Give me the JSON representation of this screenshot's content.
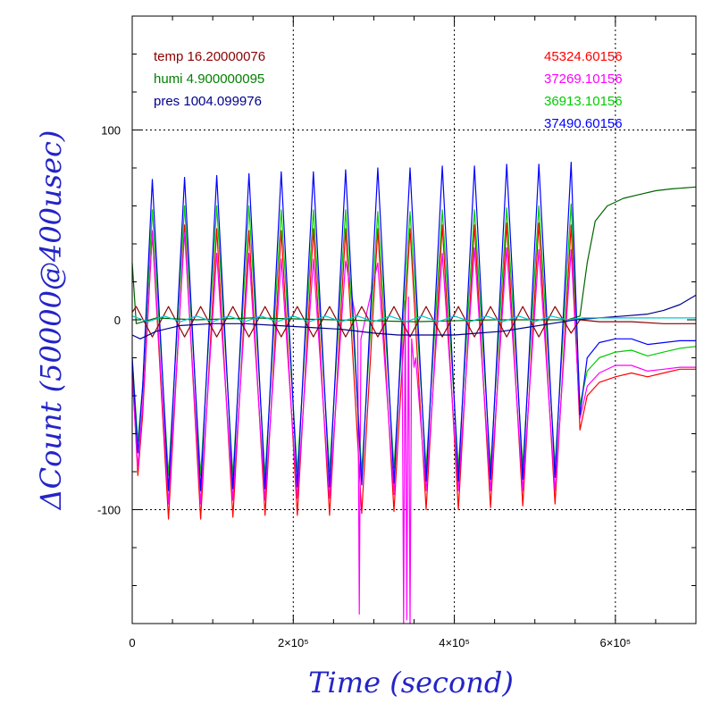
{
  "chart_data": {
    "type": "line",
    "xlabel": "Time (second)",
    "ylabel": "ΔCount (50000@400usec)",
    "xlim": [
      0,
      700000
    ],
    "ylim": [
      -160,
      160
    ],
    "x_ticks": [
      {
        "value": 0,
        "label": "0"
      },
      {
        "value": 200000,
        "label": "2×10⁵"
      },
      {
        "value": 400000,
        "label": "4×10⁵"
      },
      {
        "value": 600000,
        "label": "6×10⁵"
      }
    ],
    "y_ticks": [
      {
        "value": -100,
        "label": "-100"
      },
      {
        "value": 0,
        "label": "0"
      },
      {
        "value": 100,
        "label": "100"
      }
    ],
    "grid": "dotted",
    "env_legend": [
      {
        "label": "temp",
        "value": "16.20000076",
        "color": "#8b0000"
      },
      {
        "label": "humi",
        "value": "4.900000095",
        "color": "#008000"
      },
      {
        "label": "pres",
        "value": "1004.099976",
        "color": "#00008b"
      }
    ],
    "count_legend": [
      {
        "value": "45324.60156",
        "color": "#ff0000"
      },
      {
        "value": "37269.10156",
        "color": "#ff00ff"
      },
      {
        "value": "36913.10156",
        "color": "#00cc00"
      },
      {
        "value": "37490.60156",
        "color": "#0000ff"
      }
    ],
    "series": [
      {
        "key": "red",
        "color": "#ff0000",
        "points": [
          [
            0,
            -25
          ],
          [
            7000,
            -82
          ],
          [
            13000,
            -50
          ],
          [
            25000,
            46
          ],
          [
            45000,
            -105
          ],
          [
            65000,
            50
          ],
          [
            85000,
            -105
          ],
          [
            105000,
            48
          ],
          [
            125000,
            -104
          ],
          [
            145000,
            47
          ],
          [
            165000,
            -103
          ],
          [
            185000,
            47
          ],
          [
            205000,
            -103
          ],
          [
            225000,
            48
          ],
          [
            245000,
            -103
          ],
          [
            265000,
            48
          ],
          [
            285000,
            -102
          ],
          [
            305000,
            48
          ],
          [
            325000,
            -101
          ],
          [
            345000,
            48
          ],
          [
            365000,
            -100
          ],
          [
            385000,
            50
          ],
          [
            405000,
            -100
          ],
          [
            425000,
            50
          ],
          [
            445000,
            -99
          ],
          [
            465000,
            51
          ],
          [
            485000,
            -98
          ],
          [
            505000,
            51
          ],
          [
            525000,
            -97
          ],
          [
            545000,
            50
          ],
          [
            556000,
            -58
          ],
          [
            565000,
            -40
          ],
          [
            580000,
            -33
          ],
          [
            600000,
            -30
          ],
          [
            620000,
            -28
          ],
          [
            640000,
            -30
          ],
          [
            660000,
            -28
          ],
          [
            680000,
            -26
          ],
          [
            700000,
            -26
          ]
        ]
      },
      {
        "key": "magenta",
        "color": "#ff00ff",
        "points": [
          [
            0,
            -30
          ],
          [
            7000,
            -78
          ],
          [
            13000,
            -45
          ],
          [
            25000,
            47
          ],
          [
            45000,
            -97
          ],
          [
            65000,
            46
          ],
          [
            85000,
            -97
          ],
          [
            105000,
            35
          ],
          [
            125000,
            -95
          ],
          [
            145000,
            35
          ],
          [
            165000,
            -95
          ],
          [
            185000,
            32
          ],
          [
            205000,
            -94
          ],
          [
            225000,
            32
          ],
          [
            245000,
            -94
          ],
          [
            265000,
            31
          ],
          [
            280000,
            -5
          ],
          [
            282000,
            -155
          ],
          [
            284000,
            -10
          ],
          [
            305000,
            30
          ],
          [
            325000,
            -92
          ],
          [
            335000,
            0
          ],
          [
            337000,
            -160
          ],
          [
            339000,
            10
          ],
          [
            341000,
            -158
          ],
          [
            343000,
            12
          ],
          [
            345000,
            -160
          ],
          [
            347000,
            -10
          ],
          [
            350000,
            -25
          ],
          [
            352000,
            -20
          ],
          [
            365000,
            -90
          ],
          [
            385000,
            35
          ],
          [
            405000,
            -90
          ],
          [
            425000,
            38
          ],
          [
            445000,
            -90
          ],
          [
            465000,
            38
          ],
          [
            485000,
            -90
          ],
          [
            505000,
            37
          ],
          [
            525000,
            -90
          ],
          [
            545000,
            37
          ],
          [
            556000,
            -52
          ],
          [
            565000,
            -35
          ],
          [
            580000,
            -28
          ],
          [
            600000,
            -24
          ],
          [
            620000,
            -24
          ],
          [
            640000,
            -27
          ],
          [
            660000,
            -26
          ],
          [
            680000,
            -25
          ],
          [
            700000,
            -25
          ]
        ]
      },
      {
        "key": "green",
        "color": "#00cc00",
        "points": [
          [
            0,
            -20
          ],
          [
            7000,
            -64
          ],
          [
            13000,
            -35
          ],
          [
            25000,
            58
          ],
          [
            45000,
            -82
          ],
          [
            65000,
            60
          ],
          [
            85000,
            -82
          ],
          [
            105000,
            60
          ],
          [
            125000,
            -82
          ],
          [
            145000,
            60
          ],
          [
            165000,
            -82
          ],
          [
            185000,
            58
          ],
          [
            205000,
            -80
          ],
          [
            225000,
            58
          ],
          [
            245000,
            -80
          ],
          [
            265000,
            58
          ],
          [
            285000,
            -80
          ],
          [
            305000,
            57
          ],
          [
            325000,
            -78
          ],
          [
            345000,
            57
          ],
          [
            365000,
            -78
          ],
          [
            385000,
            58
          ],
          [
            405000,
            -78
          ],
          [
            425000,
            58
          ],
          [
            445000,
            -78
          ],
          [
            465000,
            59
          ],
          [
            485000,
            -77
          ],
          [
            505000,
            60
          ],
          [
            525000,
            -77
          ],
          [
            545000,
            61
          ],
          [
            556000,
            -45
          ],
          [
            565000,
            -27
          ],
          [
            580000,
            -20
          ],
          [
            600000,
            -17
          ],
          [
            620000,
            -16
          ],
          [
            640000,
            -19
          ],
          [
            660000,
            -17
          ],
          [
            680000,
            -15
          ],
          [
            700000,
            -14
          ]
        ]
      },
      {
        "key": "blue",
        "color": "#0000ff",
        "points": [
          [
            0,
            -20
          ],
          [
            7000,
            -70
          ],
          [
            13000,
            -35
          ],
          [
            25000,
            74
          ],
          [
            45000,
            -90
          ],
          [
            65000,
            75
          ],
          [
            85000,
            -90
          ],
          [
            105000,
            76
          ],
          [
            125000,
            -89
          ],
          [
            145000,
            77
          ],
          [
            165000,
            -89
          ],
          [
            185000,
            78
          ],
          [
            205000,
            -88
          ],
          [
            225000,
            78
          ],
          [
            245000,
            -88
          ],
          [
            265000,
            79
          ],
          [
            285000,
            -87
          ],
          [
            305000,
            80
          ],
          [
            325000,
            -86
          ],
          [
            345000,
            80
          ],
          [
            365000,
            -85
          ],
          [
            385000,
            81
          ],
          [
            405000,
            -85
          ],
          [
            425000,
            81
          ],
          [
            445000,
            -84
          ],
          [
            465000,
            82
          ],
          [
            485000,
            -84
          ],
          [
            505000,
            82
          ],
          [
            525000,
            -83
          ],
          [
            545000,
            83
          ],
          [
            556000,
            -50
          ],
          [
            565000,
            -20
          ],
          [
            580000,
            -12
          ],
          [
            600000,
            -10
          ],
          [
            620000,
            -10
          ],
          [
            640000,
            -13
          ],
          [
            660000,
            -12
          ],
          [
            680000,
            -11
          ],
          [
            700000,
            -11
          ]
        ]
      },
      {
        "key": "temp",
        "color": "#8b0000",
        "points": [
          [
            0,
            4
          ],
          [
            5000,
            7
          ],
          [
            25000,
            -9
          ],
          [
            45000,
            7
          ],
          [
            65000,
            -9
          ],
          [
            85000,
            7
          ],
          [
            105000,
            -9
          ],
          [
            125000,
            7
          ],
          [
            145000,
            -9
          ],
          [
            165000,
            7
          ],
          [
            185000,
            -9
          ],
          [
            205000,
            7
          ],
          [
            225000,
            -9
          ],
          [
            245000,
            7
          ],
          [
            265000,
            -9
          ],
          [
            285000,
            7
          ],
          [
            305000,
            -9
          ],
          [
            325000,
            7
          ],
          [
            345000,
            -9
          ],
          [
            365000,
            7
          ],
          [
            385000,
            -9
          ],
          [
            405000,
            7
          ],
          [
            425000,
            -9
          ],
          [
            445000,
            7
          ],
          [
            465000,
            -9
          ],
          [
            485000,
            7
          ],
          [
            505000,
            -9
          ],
          [
            525000,
            7
          ],
          [
            545000,
            -7
          ],
          [
            556000,
            0
          ],
          [
            580000,
            -1
          ],
          [
            620000,
            -1
          ],
          [
            660000,
            -2
          ],
          [
            700000,
            -2
          ]
        ]
      },
      {
        "key": "humi",
        "color": "#006400",
        "points": [
          [
            0,
            30
          ],
          [
            5000,
            -2
          ],
          [
            30000,
            1
          ],
          [
            80000,
            0
          ],
          [
            150000,
            1
          ],
          [
            250000,
            0
          ],
          [
            350000,
            -1
          ],
          [
            450000,
            0
          ],
          [
            540000,
            0
          ],
          [
            556000,
            2
          ],
          [
            565000,
            30
          ],
          [
            575000,
            52
          ],
          [
            590000,
            60
          ],
          [
            610000,
            64
          ],
          [
            630000,
            66
          ],
          [
            650000,
            68
          ],
          [
            670000,
            69
          ],
          [
            700000,
            70
          ]
        ]
      },
      {
        "key": "pres",
        "color": "#00008b",
        "points": [
          [
            0,
            -8
          ],
          [
            10000,
            -10
          ],
          [
            30000,
            -6
          ],
          [
            60000,
            -3
          ],
          [
            100000,
            -2
          ],
          [
            140000,
            -2
          ],
          [
            180000,
            -3
          ],
          [
            220000,
            -4
          ],
          [
            260000,
            -5
          ],
          [
            300000,
            -7
          ],
          [
            330000,
            -8
          ],
          [
            360000,
            -8
          ],
          [
            400000,
            -8
          ],
          [
            430000,
            -7
          ],
          [
            460000,
            -6
          ],
          [
            490000,
            -4
          ],
          [
            520000,
            -2
          ],
          [
            550000,
            0
          ],
          [
            580000,
            1
          ],
          [
            610000,
            2
          ],
          [
            640000,
            3
          ],
          [
            660000,
            5
          ],
          [
            680000,
            8
          ],
          [
            700000,
            13
          ]
        ]
      },
      {
        "key": "cyan",
        "color": "#00c8c8",
        "points": [
          [
            0,
            2
          ],
          [
            20000,
            -1
          ],
          [
            40000,
            2
          ],
          [
            60000,
            -1
          ],
          [
            80000,
            2
          ],
          [
            100000,
            -1
          ],
          [
            120000,
            2
          ],
          [
            140000,
            -1
          ],
          [
            160000,
            2
          ],
          [
            180000,
            -1
          ],
          [
            200000,
            2
          ],
          [
            220000,
            -1
          ],
          [
            240000,
            2
          ],
          [
            260000,
            -1
          ],
          [
            280000,
            2
          ],
          [
            300000,
            -1
          ],
          [
            320000,
            2
          ],
          [
            340000,
            -1
          ],
          [
            360000,
            2
          ],
          [
            380000,
            -1
          ],
          [
            400000,
            2
          ],
          [
            420000,
            -1
          ],
          [
            440000,
            2
          ],
          [
            460000,
            -1
          ],
          [
            480000,
            2
          ],
          [
            500000,
            -1
          ],
          [
            520000,
            2
          ],
          [
            540000,
            0
          ],
          [
            560000,
            1
          ],
          [
            600000,
            1
          ],
          [
            650000,
            1
          ],
          [
            700000,
            1
          ]
        ]
      }
    ]
  }
}
